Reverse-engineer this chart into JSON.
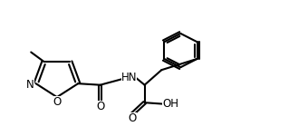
{
  "background_color": "#ffffff",
  "line_color": "#000000",
  "line_width": 1.5,
  "font_size": 8.5,
  "xlim": [
    0,
    10
  ],
  "ylim": [
    0,
    5
  ],
  "figsize": [
    3.4,
    1.5
  ],
  "dpi": 100,
  "atoms": {
    "N_label": "N",
    "O_label": "O",
    "HN_label": "HN",
    "OH_label": "OH",
    "O1_label": "O",
    "O2_label": "O"
  }
}
